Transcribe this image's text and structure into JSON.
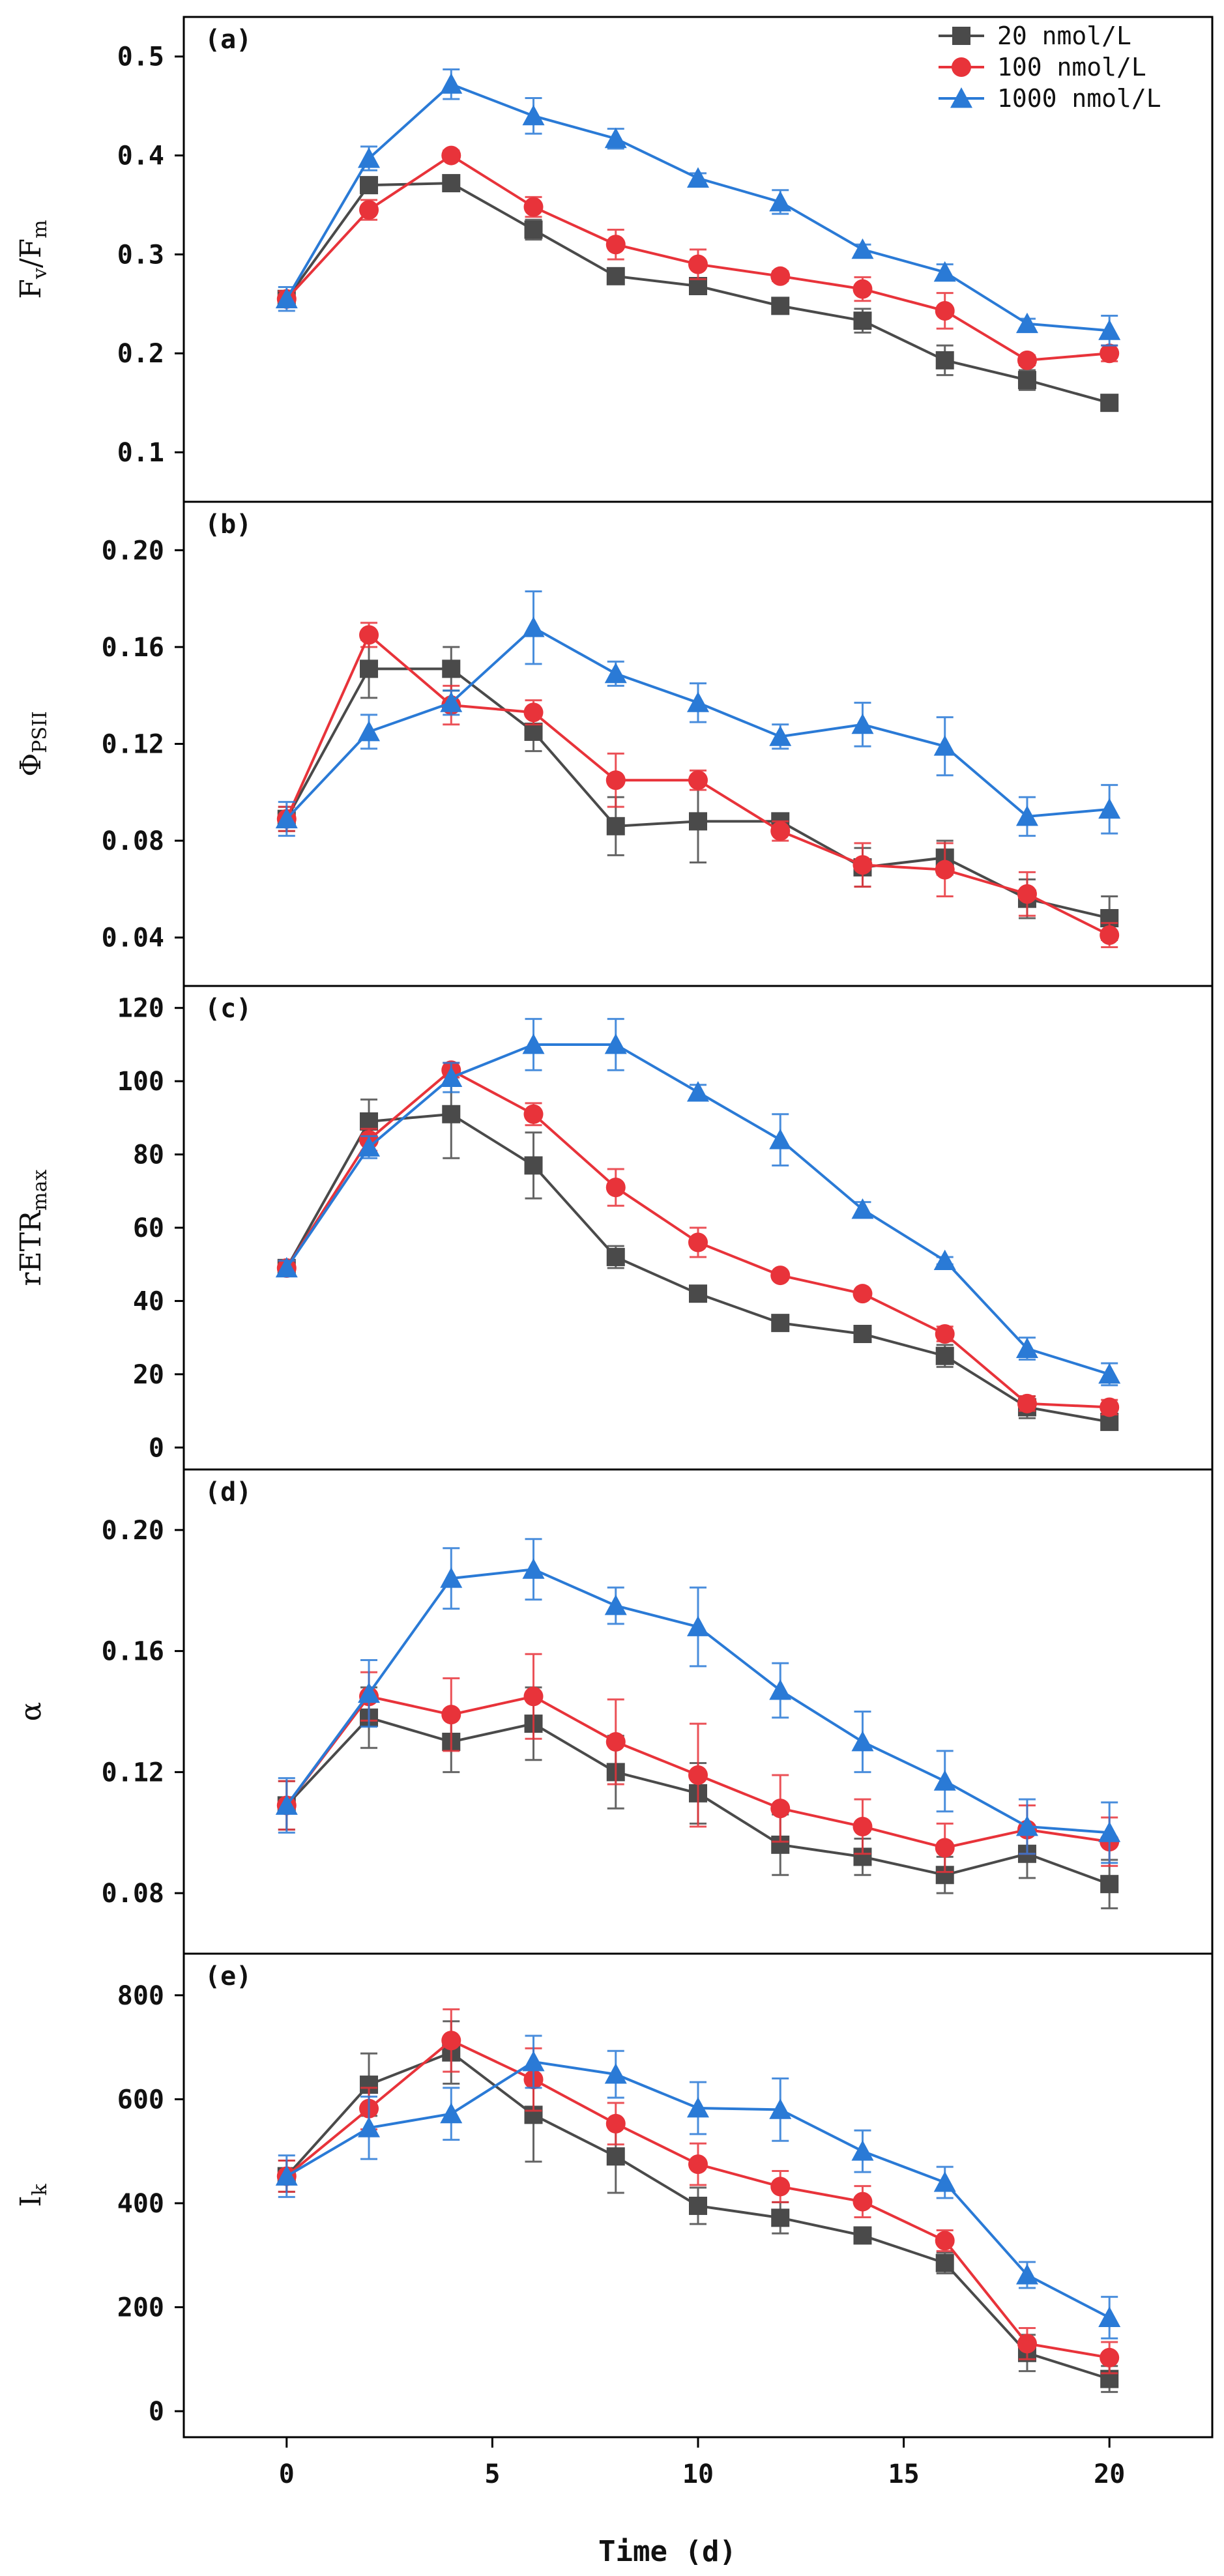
{
  "chart_data": {
    "type": "line",
    "x": [
      0,
      2,
      4,
      6,
      8,
      10,
      12,
      14,
      16,
      18,
      20
    ],
    "xlim": [
      -2.5,
      22.5
    ],
    "xticks": [
      0,
      5,
      10,
      15,
      20
    ],
    "xlabel": "Time (d)",
    "grid": false,
    "legend": {
      "placement": "top-right",
      "entries": [
        "20 nmol/L",
        "100 nmol/L",
        "1000 nmol/L"
      ]
    },
    "series_styles": [
      {
        "name": "20 nmol/L",
        "color": "#4a4a4a",
        "marker": "square"
      },
      {
        "name": "100 nmol/L",
        "color": "#e8333a",
        "marker": "circle"
      },
      {
        "name": "1000 nmol/L",
        "color": "#2a7ad6",
        "marker": "triangle"
      }
    ],
    "panels": [
      {
        "letter": "(a)",
        "ylabel_main": "F",
        "ylabel_parts": [
          {
            "t": "F",
            "sub": false
          },
          {
            "t": "v",
            "sub": true
          },
          {
            "t": "/F",
            "sub": false
          },
          {
            "t": "m",
            "sub": true
          }
        ],
        "ylim": [
          0.05,
          0.54
        ],
        "yticks": [
          0.1,
          0.2,
          0.3,
          0.4,
          0.5
        ],
        "ytick_labels": [
          "0.1",
          "0.2",
          "0.3",
          "0.4",
          "0.5"
        ],
        "series": [
          {
            "name": "20 nmol/L",
            "values": [
              0.255,
              0.37,
              0.372,
              0.325,
              0.278,
              0.268,
              0.248,
              0.233,
              0.193,
              0.173,
              0.15
            ],
            "errors": [
              0.008,
              0.008,
              0.005,
              0.01,
              0.005,
              0.008,
              0.008,
              0.012,
              0.015,
              0.01,
              0.004
            ]
          },
          {
            "name": "100 nmol/L",
            "values": [
              0.255,
              0.345,
              0.4,
              0.348,
              0.31,
              0.29,
              0.278,
              0.265,
              0.243,
              0.193,
              0.2
            ],
            "errors": [
              0.008,
              0.01,
              0.005,
              0.01,
              0.015,
              0.015,
              0.005,
              0.012,
              0.018,
              0.005,
              0.008
            ]
          },
          {
            "name": "1000 nmol/L",
            "values": [
              0.255,
              0.397,
              0.472,
              0.44,
              0.417,
              0.377,
              0.353,
              0.305,
              0.282,
              0.23,
              0.223
            ],
            "errors": [
              0.012,
              0.012,
              0.015,
              0.018,
              0.01,
              0.005,
              0.012,
              0.005,
              0.008,
              0.005,
              0.015
            ]
          }
        ]
      },
      {
        "letter": "(b)",
        "ylabel_main": "Φ",
        "ylabel_parts": [
          {
            "t": "Φ",
            "sub": false
          },
          {
            "t": "PSII",
            "sub": true
          }
        ],
        "ylim": [
          0.02,
          0.22
        ],
        "yticks": [
          0.04,
          0.08,
          0.12,
          0.16,
          0.2
        ],
        "ytick_labels": [
          "0.04",
          "0.08",
          "0.12",
          "0.16",
          "0.20"
        ],
        "series": [
          {
            "name": "20 nmol/L",
            "values": [
              0.089,
              0.151,
              0.151,
              0.125,
              0.086,
              0.088,
              0.088,
              0.069,
              0.073,
              0.056,
              0.048
            ],
            "errors": [
              0.005,
              0.012,
              0.009,
              0.008,
              0.012,
              0.017,
              0.003,
              0.008,
              0.007,
              0.008,
              0.009
            ]
          },
          {
            "name": "100 nmol/L",
            "values": [
              0.089,
              0.165,
              0.136,
              0.133,
              0.105,
              0.105,
              0.084,
              0.07,
              0.068,
              0.058,
              0.041
            ],
            "errors": [
              0.005,
              0.005,
              0.008,
              0.005,
              0.011,
              0.004,
              0.004,
              0.009,
              0.011,
              0.009,
              0.005
            ]
          },
          {
            "name": "1000 nmol/L",
            "values": [
              0.089,
              0.125,
              0.137,
              0.168,
              0.149,
              0.137,
              0.123,
              0.128,
              0.119,
              0.09,
              0.093
            ],
            "errors": [
              0.007,
              0.007,
              0.005,
              0.015,
              0.005,
              0.008,
              0.005,
              0.009,
              0.012,
              0.008,
              0.01
            ]
          }
        ]
      },
      {
        "letter": "(c)",
        "ylabel_main": "rETR",
        "ylabel_parts": [
          {
            "t": "rETR",
            "sub": false
          },
          {
            "t": "max",
            "sub": true
          }
        ],
        "ylim": [
          -6,
          126
        ],
        "yticks": [
          0,
          20,
          40,
          60,
          80,
          100,
          120
        ],
        "ytick_labels": [
          "0",
          "20",
          "40",
          "60",
          "80",
          "100",
          "120"
        ],
        "series": [
          {
            "name": "20 nmol/L",
            "values": [
              49,
              89,
              91,
              77,
              52,
              42,
              34,
              31,
              25,
              11,
              7
            ],
            "errors": [
              2,
              6,
              12,
              9,
              3,
              2,
              1,
              1,
              3,
              3,
              1
            ]
          },
          {
            "name": "100 nmol/L",
            "values": [
              49,
              84,
              103,
              91,
              71,
              56,
              47,
              42,
              31,
              12,
              11
            ],
            "errors": [
              2,
              3,
              2,
              3,
              5,
              4,
              1,
              1,
              2,
              2,
              2
            ]
          },
          {
            "name": "1000 nmol/L",
            "values": [
              49,
              82,
              101,
              110,
              110,
              97,
              84,
              65,
              51,
              27,
              20
            ],
            "errors": [
              2,
              3,
              4,
              7,
              7,
              2,
              7,
              2,
              1,
              3,
              3
            ]
          }
        ]
      },
      {
        "letter": "(d)",
        "ylabel_main": "α",
        "ylabel_parts": [
          {
            "t": "α",
            "sub": false
          }
        ],
        "ylim": [
          0.06,
          0.22
        ],
        "yticks": [
          0.08,
          0.12,
          0.16,
          0.2
        ],
        "ytick_labels": [
          "0.08",
          "0.12",
          "0.16",
          "0.20"
        ],
        "series": [
          {
            "name": "20 nmol/L",
            "values": [
              0.109,
              0.138,
              0.13,
              0.136,
              0.12,
              0.113,
              0.096,
              0.092,
              0.086,
              0.093,
              0.083
            ],
            "errors": [
              0.008,
              0.01,
              0.01,
              0.012,
              0.012,
              0.01,
              0.01,
              0.006,
              0.006,
              0.008,
              0.008
            ]
          },
          {
            "name": "100 nmol/L",
            "values": [
              0.109,
              0.145,
              0.139,
              0.145,
              0.13,
              0.119,
              0.108,
              0.102,
              0.095,
              0.101,
              0.097
            ],
            "errors": [
              0.008,
              0.008,
              0.012,
              0.014,
              0.014,
              0.017,
              0.011,
              0.009,
              0.008,
              0.008,
              0.008
            ]
          },
          {
            "name": "1000 nmol/L",
            "values": [
              0.109,
              0.146,
              0.184,
              0.187,
              0.175,
              0.168,
              0.147,
              0.13,
              0.117,
              0.102,
              0.1
            ],
            "errors": [
              0.009,
              0.011,
              0.01,
              0.01,
              0.006,
              0.013,
              0.009,
              0.01,
              0.01,
              0.009,
              0.01
            ]
          }
        ]
      },
      {
        "letter": "(e)",
        "ylabel_main": "I",
        "ylabel_parts": [
          {
            "t": "I",
            "sub": false
          },
          {
            "t": "k",
            "sub": true
          }
        ],
        "ylim": [
          -50,
          880
        ],
        "yticks": [
          0,
          200,
          400,
          600,
          800
        ],
        "ytick_labels": [
          "0",
          "200",
          "400",
          "600",
          "800"
        ],
        "series": [
          {
            "name": "20 nmol/L",
            "values": [
              452,
              628,
              690,
              570,
              490,
              395,
              372,
              338,
              285,
              112,
              62
            ],
            "errors": [
              30,
              60,
              60,
              90,
              70,
              35,
              30,
              15,
              20,
              35,
              25
            ]
          },
          {
            "name": "100 nmol/L",
            "values": [
              452,
              582,
              713,
              638,
              553,
              475,
              432,
              403,
              328,
              130,
              103
            ],
            "errors": [
              30,
              40,
              60,
              60,
              40,
              40,
              30,
              30,
              20,
              30,
              30
            ]
          },
          {
            "name": "1000 nmol/L",
            "values": [
              452,
              545,
              572,
              672,
              648,
              583,
              580,
              500,
              440,
              262,
              180
            ],
            "errors": [
              40,
              60,
              50,
              50,
              45,
              50,
              60,
              40,
              30,
              25,
              40
            ]
          }
        ]
      }
    ]
  }
}
